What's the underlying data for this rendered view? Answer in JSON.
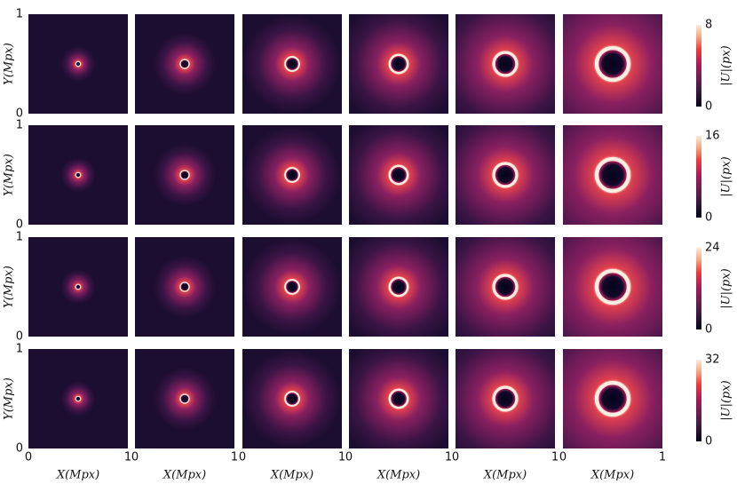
{
  "chart_data": [
    {
      "type": "heatmap",
      "ylabel": "Y(Mpx)",
      "xlim": [
        0,
        1
      ],
      "ylim": [
        0,
        1
      ],
      "yticks": [
        0,
        1
      ],
      "ring_radius": [
        0.025,
        0.045,
        0.07,
        0.09,
        0.115,
        0.16
      ],
      "colorbar": {
        "label": "|U|(px)",
        "lim": [
          0,
          8
        ],
        "ticks": [
          0,
          8
        ]
      }
    },
    {
      "type": "heatmap",
      "ylabel": "Y(Mpx)",
      "xlim": [
        0,
        1
      ],
      "ylim": [
        0,
        1
      ],
      "yticks": [
        0,
        1
      ],
      "ring_radius": [
        0.025,
        0.045,
        0.07,
        0.09,
        0.115,
        0.16
      ],
      "colorbar": {
        "label": "|U|(px)",
        "lim": [
          0,
          16
        ],
        "ticks": [
          0,
          16
        ]
      }
    },
    {
      "type": "heatmap",
      "ylabel": "Y(Mpx)",
      "xlim": [
        0,
        1
      ],
      "ylim": [
        0,
        1
      ],
      "yticks": [
        0,
        1
      ],
      "ring_radius": [
        0.025,
        0.045,
        0.07,
        0.09,
        0.115,
        0.16
      ],
      "colorbar": {
        "label": "|U|(px)",
        "lim": [
          0,
          24
        ],
        "ticks": [
          0,
          24
        ]
      }
    },
    {
      "type": "heatmap",
      "ylabel": "Y(Mpx)",
      "xlabel": "X(Mpx)",
      "xlim": [
        0,
        1
      ],
      "ylim": [
        0,
        1
      ],
      "xticks": [
        0,
        1
      ],
      "yticks": [
        0,
        1
      ],
      "ring_radius": [
        0.025,
        0.045,
        0.07,
        0.09,
        0.115,
        0.16
      ],
      "colorbar": {
        "label": "|U|(px)",
        "lim": [
          0,
          32
        ],
        "ticks": [
          0,
          32
        ]
      }
    }
  ]
}
